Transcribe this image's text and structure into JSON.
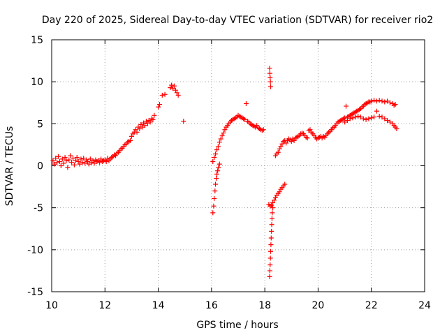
{
  "chart_data": {
    "type": "scatter",
    "title": "Day 220 of 2025, Sidereal Day-to-day VTEC variation (SDTVAR) for receiver rio2",
    "xlabel": "GPS time / hours",
    "ylabel": "SDTVAR / TECUs",
    "xlim": [
      10,
      24
    ],
    "ylim": [
      -15,
      15
    ],
    "xticks": [
      10,
      12,
      14,
      16,
      18,
      20,
      22,
      24
    ],
    "yticks": [
      -15,
      -10,
      -5,
      0,
      5,
      10,
      15
    ],
    "grid": true,
    "marker": "+",
    "color": "#ff0000",
    "series": [
      {
        "name": "segment-1",
        "points": [
          [
            10.05,
            0.6
          ],
          [
            10.1,
            0.2
          ],
          [
            10.15,
            0.9
          ],
          [
            10.2,
            0.4
          ],
          [
            10.25,
            1.1
          ],
          [
            10.3,
            0.5
          ],
          [
            10.35,
            0.0
          ],
          [
            10.4,
            0.8
          ],
          [
            10.45,
            0.3
          ],
          [
            10.5,
            1.0
          ],
          [
            10.55,
            0.6
          ],
          [
            10.6,
            -0.2
          ],
          [
            10.65,
            0.7
          ],
          [
            10.7,
            1.2
          ],
          [
            10.75,
            0.4
          ],
          [
            10.8,
            0.9
          ],
          [
            10.85,
            0.1
          ],
          [
            10.9,
            0.6
          ],
          [
            10.95,
            1.0
          ],
          [
            11.0,
            0.5
          ],
          [
            11.05,
            0.2
          ],
          [
            11.1,
            0.8
          ],
          [
            11.15,
            0.4
          ],
          [
            11.2,
            0.9
          ],
          [
            11.25,
            0.3
          ],
          [
            11.3,
            0.7
          ],
          [
            11.35,
            0.5
          ],
          [
            11.4,
            0.2
          ],
          [
            11.45,
            0.8
          ],
          [
            11.5,
            0.4
          ],
          [
            11.55,
            0.6
          ],
          [
            11.6,
            0.3
          ],
          [
            11.65,
            0.7
          ],
          [
            11.7,
            0.5
          ],
          [
            11.75,
            0.6
          ],
          [
            11.8,
            0.4
          ],
          [
            11.85,
            0.8
          ],
          [
            11.9,
            0.5
          ],
          [
            11.95,
            0.6
          ],
          [
            12.0,
            0.7
          ],
          [
            12.05,
            0.5
          ],
          [
            12.1,
            0.9
          ],
          [
            12.15,
            0.6
          ],
          [
            12.2,
            0.8
          ],
          [
            12.25,
            1.0
          ],
          [
            12.3,
            1.1
          ],
          [
            12.35,
            1.3
          ],
          [
            12.4,
            1.2
          ],
          [
            12.45,
            1.5
          ],
          [
            12.5,
            1.6
          ],
          [
            12.55,
            1.8
          ],
          [
            12.6,
            2.0
          ],
          [
            12.65,
            2.1
          ],
          [
            12.7,
            2.3
          ],
          [
            12.75,
            2.5
          ],
          [
            12.8,
            2.6
          ],
          [
            12.85,
            2.8
          ],
          [
            12.9,
            2.9
          ],
          [
            12.95,
            3.0
          ],
          [
            13.0,
            3.5
          ],
          [
            13.05,
            3.8
          ],
          [
            13.1,
            4.0
          ],
          [
            13.15,
            4.3
          ],
          [
            13.2,
            4.0
          ],
          [
            13.25,
            4.6
          ],
          [
            13.3,
            4.4
          ],
          [
            13.35,
            4.9
          ],
          [
            13.4,
            4.6
          ],
          [
            13.45,
            5.1
          ],
          [
            13.5,
            4.8
          ],
          [
            13.55,
            5.3
          ],
          [
            13.6,
            5.0
          ],
          [
            13.65,
            5.4
          ],
          [
            13.7,
            5.2
          ],
          [
            13.75,
            5.6
          ],
          [
            13.8,
            5.5
          ],
          [
            13.85,
            6.0
          ],
          [
            14.0,
            7.0
          ],
          [
            14.05,
            7.3
          ],
          [
            14.15,
            8.4
          ],
          [
            14.25,
            8.5
          ],
          [
            14.45,
            9.3
          ],
          [
            14.5,
            9.6
          ],
          [
            14.55,
            9.2
          ],
          [
            14.6,
            9.5
          ],
          [
            14.65,
            9.0
          ],
          [
            14.7,
            8.7
          ],
          [
            14.75,
            8.4
          ],
          [
            14.95,
            5.3
          ]
        ]
      },
      {
        "name": "segment-2-lower",
        "points": [
          [
            16.05,
            -5.6
          ],
          [
            16.08,
            -4.8
          ],
          [
            16.1,
            -3.9
          ],
          [
            16.13,
            -3.0
          ],
          [
            16.15,
            -2.2
          ],
          [
            16.18,
            -1.5
          ],
          [
            16.2,
            -1.0
          ],
          [
            16.23,
            -0.6
          ],
          [
            16.26,
            -0.2
          ],
          [
            16.3,
            0.2
          ]
        ]
      },
      {
        "name": "segment-2-upper",
        "points": [
          [
            16.05,
            0.5
          ],
          [
            16.1,
            1.0
          ],
          [
            16.15,
            1.4
          ],
          [
            16.2,
            1.9
          ],
          [
            16.25,
            2.3
          ],
          [
            16.3,
            2.8
          ],
          [
            16.35,
            3.2
          ],
          [
            16.4,
            3.6
          ],
          [
            16.45,
            3.9
          ],
          [
            16.5,
            4.3
          ],
          [
            16.55,
            4.6
          ],
          [
            16.6,
            4.8
          ],
          [
            16.65,
            5.0
          ],
          [
            16.7,
            5.2
          ],
          [
            16.75,
            5.4
          ],
          [
            16.8,
            5.5
          ],
          [
            16.85,
            5.6
          ],
          [
            16.9,
            5.7
          ],
          [
            16.95,
            5.8
          ],
          [
            17.0,
            6.0
          ],
          [
            17.05,
            5.9
          ],
          [
            17.1,
            5.8
          ],
          [
            17.15,
            5.7
          ],
          [
            17.2,
            5.6
          ],
          [
            17.25,
            5.5
          ],
          [
            17.3,
            7.4
          ],
          [
            17.35,
            5.3
          ],
          [
            17.4,
            5.2
          ],
          [
            17.45,
            5.0
          ],
          [
            17.5,
            4.9
          ],
          [
            17.55,
            4.8
          ],
          [
            17.6,
            4.7
          ],
          [
            17.65,
            4.6
          ],
          [
            17.7,
            4.8
          ],
          [
            17.75,
            4.5
          ],
          [
            17.8,
            4.4
          ],
          [
            17.85,
            4.3
          ],
          [
            17.9,
            4.2
          ],
          [
            17.95,
            4.3
          ]
        ]
      },
      {
        "name": "segment-3-spike",
        "points": [
          [
            18.18,
            11.6
          ],
          [
            18.19,
            11.0
          ],
          [
            18.2,
            10.5
          ],
          [
            18.21,
            10.0
          ],
          [
            18.22,
            9.4
          ],
          [
            18.18,
            -13.2
          ],
          [
            18.19,
            -12.5
          ],
          [
            18.2,
            -11.8
          ],
          [
            18.21,
            -11.0
          ],
          [
            18.22,
            -10.2
          ],
          [
            18.23,
            -9.4
          ],
          [
            18.24,
            -8.6
          ],
          [
            18.25,
            -7.8
          ],
          [
            18.26,
            -7.0
          ],
          [
            18.27,
            -6.3
          ],
          [
            18.28,
            -5.6
          ],
          [
            18.3,
            -5.0
          ]
        ]
      },
      {
        "name": "segment-3-lower",
        "points": [
          [
            18.15,
            -4.6
          ],
          [
            18.2,
            -4.8
          ],
          [
            18.25,
            -4.7
          ],
          [
            18.3,
            -4.4
          ],
          [
            18.35,
            -4.1
          ],
          [
            18.4,
            -3.8
          ],
          [
            18.45,
            -3.5
          ],
          [
            18.5,
            -3.3
          ],
          [
            18.55,
            -3.1
          ],
          [
            18.6,
            -2.8
          ],
          [
            18.65,
            -2.6
          ],
          [
            18.7,
            -2.4
          ],
          [
            18.75,
            -2.2
          ]
        ]
      },
      {
        "name": "segment-3-upper",
        "points": [
          [
            18.4,
            1.2
          ],
          [
            18.45,
            1.4
          ],
          [
            18.5,
            1.6
          ],
          [
            18.55,
            2.0
          ],
          [
            18.6,
            2.3
          ],
          [
            18.65,
            2.6
          ],
          [
            18.7,
            2.9
          ],
          [
            18.75,
            3.0
          ],
          [
            18.8,
            2.7
          ],
          [
            18.85,
            3.0
          ],
          [
            18.9,
            3.2
          ],
          [
            18.95,
            3.1
          ],
          [
            19.0,
            2.9
          ],
          [
            19.05,
            3.2
          ],
          [
            19.1,
            3.0
          ],
          [
            19.15,
            3.3
          ],
          [
            19.2,
            3.4
          ],
          [
            19.25,
            3.5
          ],
          [
            19.3,
            3.6
          ],
          [
            19.35,
            3.8
          ],
          [
            19.4,
            3.9
          ],
          [
            19.45,
            3.8
          ],
          [
            19.5,
            3.6
          ],
          [
            19.55,
            3.4
          ],
          [
            19.6,
            3.3
          ],
          [
            19.65,
            4.2
          ],
          [
            19.7,
            4.3
          ],
          [
            19.75,
            4.0
          ],
          [
            19.8,
            3.8
          ],
          [
            19.85,
            3.6
          ],
          [
            19.9,
            3.4
          ],
          [
            19.95,
            3.2
          ],
          [
            20.0,
            3.3
          ],
          [
            20.05,
            3.4
          ],
          [
            20.1,
            3.5
          ],
          [
            20.15,
            3.3
          ],
          [
            20.2,
            3.5
          ],
          [
            20.25,
            3.4
          ],
          [
            20.3,
            3.6
          ],
          [
            20.35,
            3.8
          ],
          [
            20.4,
            4.0
          ],
          [
            20.45,
            4.1
          ],
          [
            20.5,
            4.3
          ],
          [
            20.55,
            4.5
          ],
          [
            20.6,
            4.6
          ],
          [
            20.65,
            4.8
          ],
          [
            20.7,
            5.0
          ],
          [
            20.75,
            5.2
          ],
          [
            20.8,
            5.3
          ],
          [
            20.85,
            5.4
          ],
          [
            20.9,
            5.5
          ],
          [
            20.95,
            5.6
          ],
          [
            21.0,
            5.7
          ],
          [
            21.05,
            7.1
          ],
          [
            21.1,
            5.8
          ],
          [
            21.15,
            5.9
          ],
          [
            21.2,
            6.0
          ],
          [
            21.25,
            6.1
          ],
          [
            21.3,
            6.2
          ],
          [
            21.35,
            6.3
          ],
          [
            21.4,
            6.4
          ],
          [
            21.45,
            6.5
          ],
          [
            21.5,
            6.6
          ],
          [
            21.55,
            6.7
          ],
          [
            21.6,
            6.8
          ],
          [
            21.65,
            7.0
          ],
          [
            21.7,
            7.1
          ],
          [
            21.75,
            7.3
          ],
          [
            21.8,
            7.4
          ],
          [
            21.85,
            7.5
          ],
          [
            21.9,
            7.6
          ],
          [
            21.95,
            7.6
          ],
          [
            22.0,
            7.7
          ],
          [
            22.1,
            7.8
          ],
          [
            22.2,
            7.7
          ],
          [
            22.3,
            7.8
          ],
          [
            22.4,
            7.7
          ],
          [
            22.5,
            7.6
          ],
          [
            22.6,
            7.7
          ],
          [
            22.7,
            7.5
          ],
          [
            22.8,
            7.4
          ],
          [
            22.85,
            7.2
          ],
          [
            22.9,
            7.3
          ]
        ]
      },
      {
        "name": "segment-3-mid",
        "points": [
          [
            21.0,
            5.2
          ],
          [
            21.1,
            5.4
          ],
          [
            21.2,
            5.6
          ],
          [
            21.3,
            5.7
          ],
          [
            21.4,
            5.8
          ],
          [
            21.5,
            5.9
          ],
          [
            21.6,
            5.8
          ],
          [
            21.7,
            5.6
          ],
          [
            21.8,
            5.5
          ],
          [
            21.9,
            5.6
          ],
          [
            22.0,
            5.7
          ],
          [
            22.1,
            5.8
          ],
          [
            22.2,
            6.5
          ],
          [
            22.3,
            5.9
          ],
          [
            22.4,
            5.8
          ],
          [
            22.5,
            5.6
          ],
          [
            22.6,
            5.4
          ],
          [
            22.7,
            5.2
          ],
          [
            22.8,
            5.0
          ],
          [
            22.85,
            4.8
          ],
          [
            22.9,
            4.6
          ],
          [
            22.95,
            4.4
          ]
        ]
      }
    ]
  }
}
